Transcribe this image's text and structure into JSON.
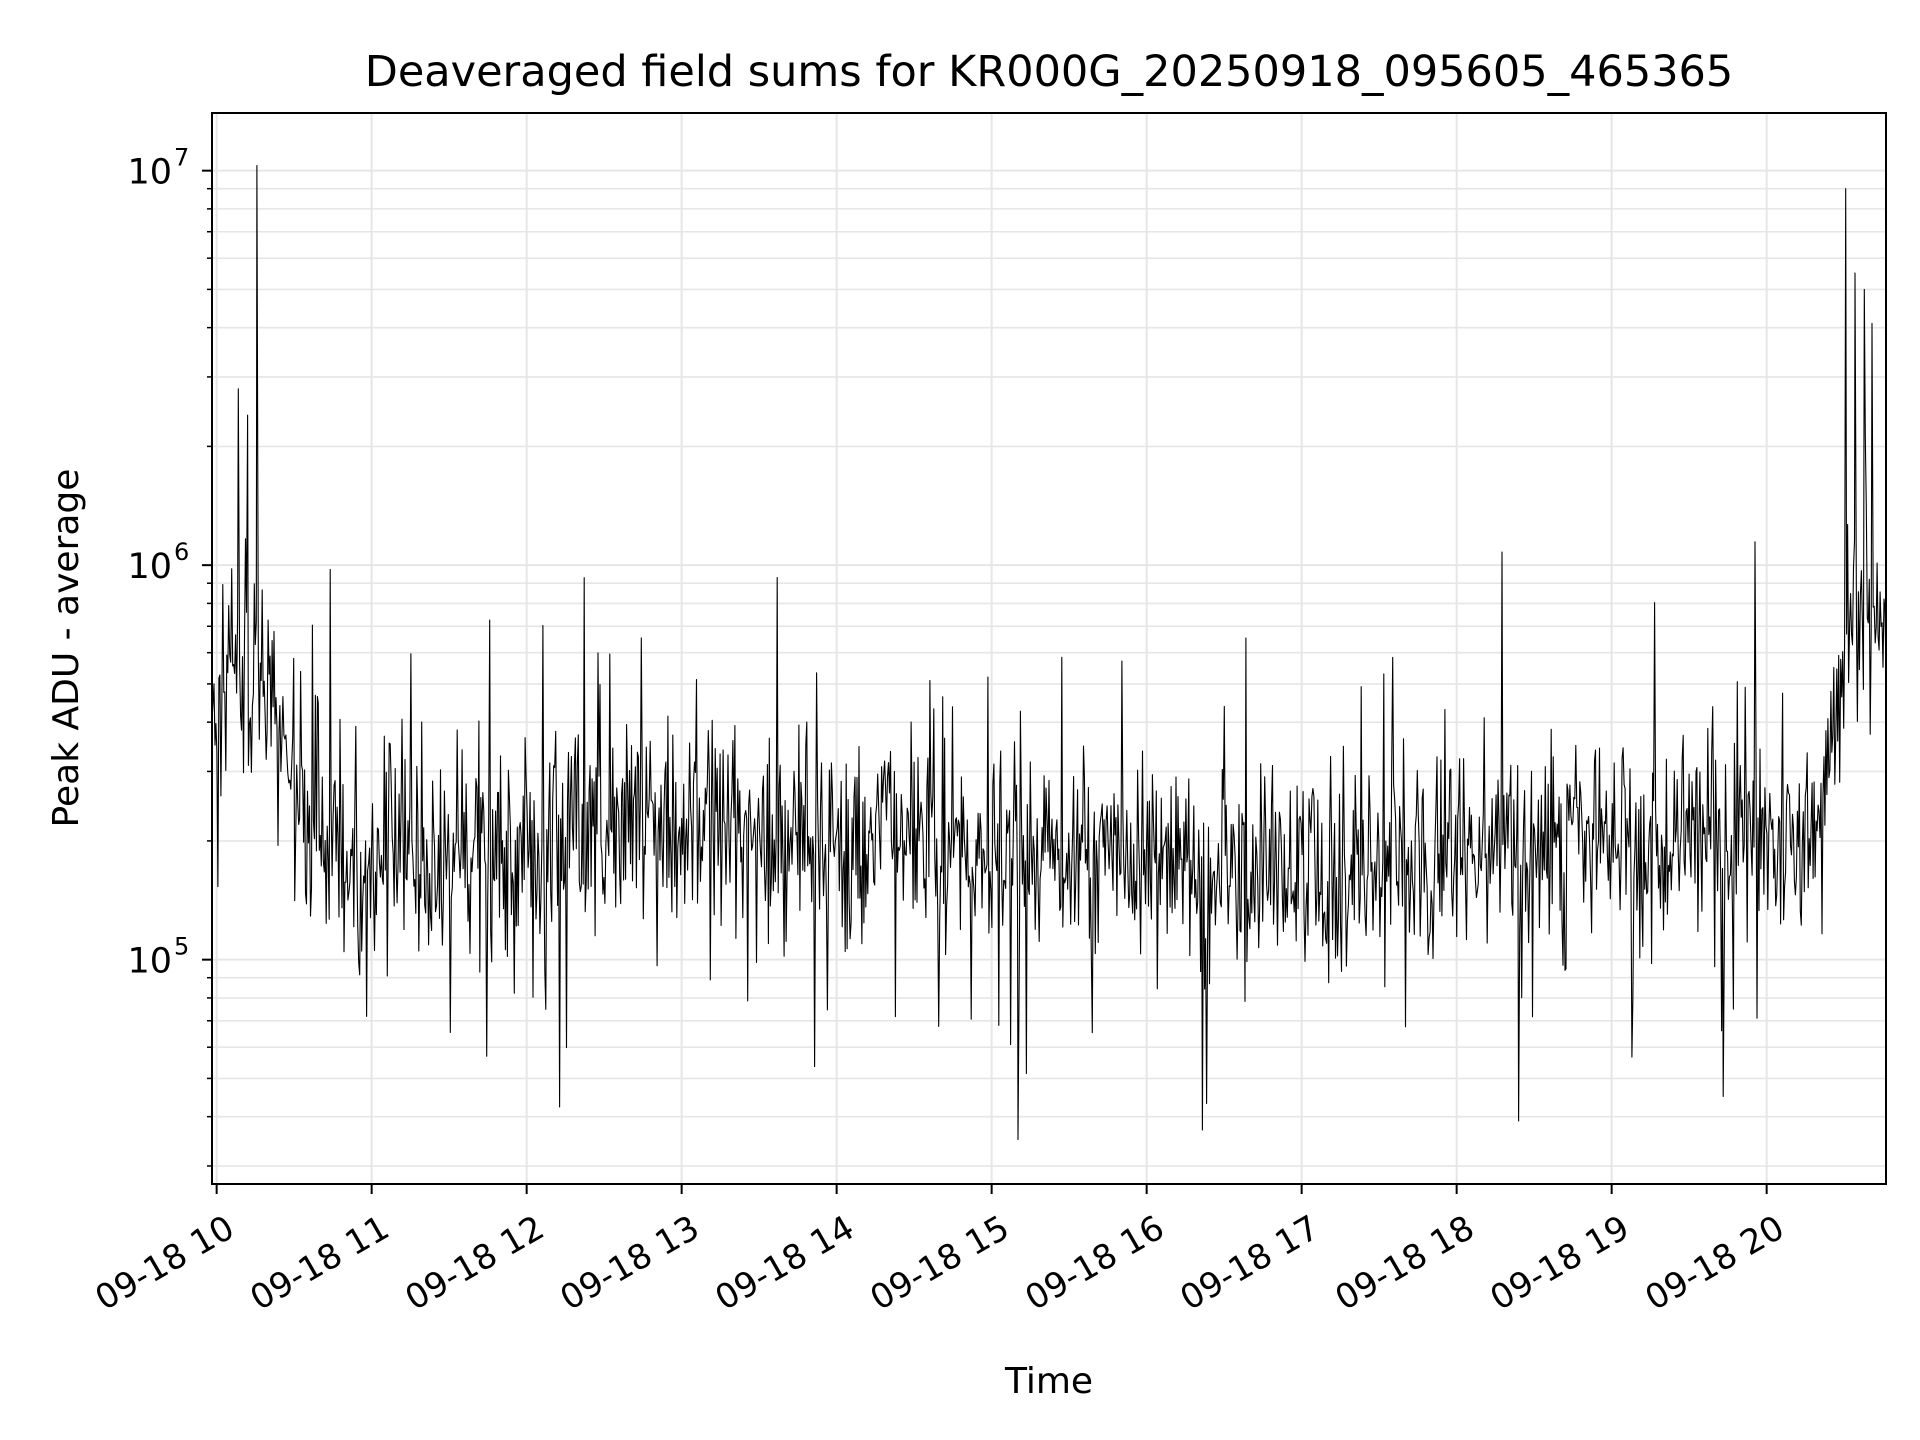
{
  "chart_data": {
    "type": "line",
    "title": "Deaveraged field sums for KR000G_20250918_095605_465365",
    "xlabel": "Time",
    "ylabel": "Peak ADU - average",
    "x_tick_labels": [
      "09-18 10",
      "09-18 11",
      "09-18 12",
      "09-18 13",
      "09-18 14",
      "09-18 15",
      "09-18 16",
      "09-18 17",
      "09-18 18",
      "09-18 19",
      "09-18 20"
    ],
    "x_tick_hours": [
      10,
      11,
      12,
      13,
      14,
      15,
      16,
      17,
      18,
      19,
      20
    ],
    "xlim_hours": [
      9.97,
      20.77
    ],
    "y_tick_labels": [
      {
        "base": "10",
        "exp": "5",
        "value": 100000
      },
      {
        "base": "10",
        "exp": "6",
        "value": 1000000
      },
      {
        "base": "10",
        "exp": "7",
        "value": 10000000
      }
    ],
    "ylim": [
      27000,
      14000000
    ],
    "y_scale": "log",
    "grid": true,
    "line_color": "#000000",
    "grid_color": "#e6e6e6",
    "series": [
      {
        "x": [
          9.97,
          10.0,
          10.1,
          10.2,
          10.27,
          10.3,
          10.35,
          10.4,
          10.5,
          10.6,
          10.8,
          11.0,
          11.5,
          12.0,
          12.5,
          13.0,
          13.5,
          14.0,
          14.5,
          15.0,
          15.5,
          16.0,
          16.5,
          17.0,
          17.5,
          18.0,
          18.5,
          19.0,
          19.5,
          20.0,
          20.2,
          20.35,
          20.45,
          20.55,
          20.65,
          20.77
        ],
        "y": [
          350000,
          420000,
          500000,
          600000,
          550000,
          520000,
          460000,
          380000,
          280000,
          220000,
          190000,
          180000,
          185000,
          200000,
          215000,
          225000,
          220000,
          210000,
          200000,
          185000,
          175000,
          170000,
          165000,
          168000,
          175000,
          185000,
          195000,
          205000,
          210000,
          205000,
          200000,
          220000,
          450000,
          800000,
          850000,
          750000
        ]
      }
    ],
    "spikes": [
      {
        "x": 10.26,
        "y": 10300000
      },
      {
        "x": 10.14,
        "y": 2800000
      },
      {
        "x": 10.2,
        "y": 2400000
      },
      {
        "x": 20.51,
        "y": 9000000
      },
      {
        "x": 20.57,
        "y": 5500000
      },
      {
        "x": 20.63,
        "y": 5000000
      },
      {
        "x": 20.68,
        "y": 4100000
      }
    ],
    "dips": [
      {
        "x": 15.17,
        "y": 35000
      },
      {
        "x": 16.36,
        "y": 37000
      },
      {
        "x": 18.4,
        "y": 39000
      },
      {
        "x": 19.72,
        "y": 45000
      }
    ]
  }
}
